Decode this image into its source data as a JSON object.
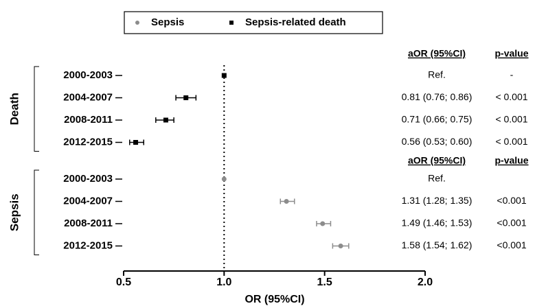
{
  "chart_data": {
    "type": "forest",
    "xlabel": "OR (95%CI)",
    "xlim": [
      0.5,
      2.0
    ],
    "xticks": [
      0.5,
      {
        "value": 1,
        "label": "1.0"
      },
      1.5,
      {
        "value": 2,
        "label": "2.0"
      }
    ],
    "reference_line": 1,
    "legend": "top",
    "series": [
      {
        "name": "Sepsis",
        "group": "Sepsis",
        "color": "#8c8c8c",
        "marker": "circle",
        "categories": [
          "2000-2003",
          "2004-2007",
          "2008-2011",
          "2012-2015"
        ],
        "values": [
          1,
          1.31,
          1.49,
          1.58
        ],
        "lower": [
          null,
          1.28,
          1.46,
          1.54
        ],
        "upper": [
          null,
          1.35,
          1.53,
          1.62
        ],
        "columns": [
          "aOR (95%CI)",
          "p-value"
        ],
        "value_labels": [
          "Ref.",
          "1.31 (1.28; 1.35)",
          "1.49 (1.46; 1.53)",
          "1.58 (1.54; 1.62)"
        ],
        "p_values": [
          "",
          "<0.001",
          "<0.001",
          "<0.001"
        ]
      },
      {
        "name": "Sepsis-related death",
        "group": "Death",
        "color": "#000000",
        "marker": "square",
        "categories": [
          "2000-2003",
          "2004-2007",
          "2008-2011",
          "2012-2015"
        ],
        "values": [
          1,
          0.81,
          0.71,
          0.56
        ],
        "lower": [
          null,
          0.76,
          0.66,
          0.53
        ],
        "upper": [
          null,
          0.86,
          0.75,
          0.6
        ],
        "columns": [
          "aOR (95%CI)",
          "p-value"
        ],
        "value_labels": [
          "Ref.",
          "0.81 (0.76; 0.86)",
          "0.71 (0.66; 0.75)",
          "0.56 (0.53; 0.60)"
        ],
        "p_values": [
          "-",
          "< 0.001",
          "< 0.001",
          "< 0.001"
        ]
      }
    ]
  }
}
